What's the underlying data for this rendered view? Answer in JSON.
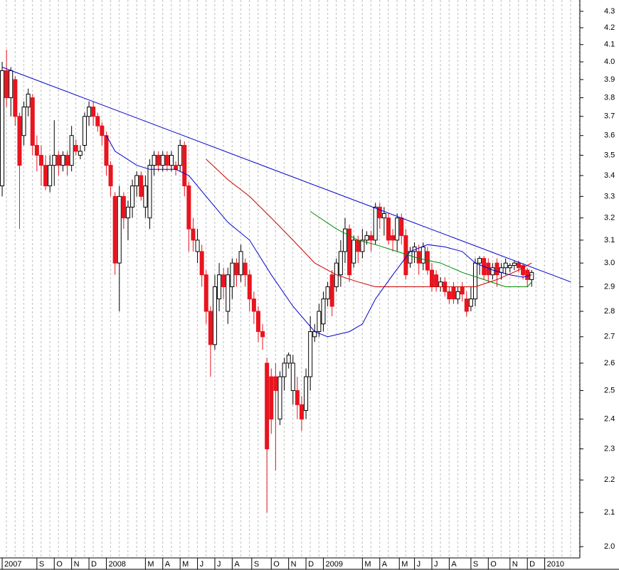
{
  "chart_data": {
    "type": "candlestick",
    "log_scale": true,
    "up_color": "#ffffff",
    "down_color": "#e8141e",
    "open": [
      3.35,
      3.95,
      3.8,
      3.9,
      3.7,
      3.6,
      3.75,
      3.8,
      3.55,
      3.5,
      3.45,
      3.35,
      3.45,
      3.5,
      3.45,
      3.5,
      3.45,
      3.55,
      3.5,
      3.55,
      3.7,
      3.75,
      3.7,
      3.65,
      3.6,
      3.45,
      3.3,
      3.0,
      3.3,
      3.2,
      3.25,
      3.35,
      3.4,
      3.25,
      3.2,
      3.45,
      3.5,
      3.45,
      3.5,
      3.45,
      3.45,
      3.45,
      3.55,
      3.35,
      3.15,
      3.05,
      3.05,
      2.95,
      2.8,
      2.67,
      2.85,
      2.95,
      2.8,
      2.9,
      3.0,
      2.95,
      3.0,
      2.95,
      2.85,
      2.8,
      2.72,
      2.6,
      2.55,
      2.55,
      2.4,
      2.55,
      2.6,
      2.5,
      2.5,
      2.45,
      2.43,
      2.55,
      2.7,
      2.72,
      2.75,
      2.85,
      2.95,
      2.9,
      2.95,
      3.05,
      3.15,
      3.0,
      3.1,
      3.05,
      3.1,
      3.12,
      3.1,
      3.25,
      3.2,
      3.2,
      3.12,
      3.1,
      3.2,
      3.12,
      3.0,
      3.05,
      3.05,
      3.0,
      3.05,
      2.97,
      2.95,
      2.9,
      2.92,
      2.88,
      2.9,
      2.85,
      2.9,
      2.85,
      2.82,
      2.85,
      3.0,
      3.02,
      3.0,
      2.95,
      3.0,
      2.96,
      2.98,
      2.98,
      2.99,
      3.0,
      2.99,
      2.97,
      2.93
    ],
    "high": [
      4.0,
      4.07,
      3.97,
      3.92,
      3.72,
      3.78,
      3.85,
      3.82,
      3.6,
      3.55,
      3.5,
      3.5,
      3.68,
      3.52,
      3.52,
      3.52,
      3.65,
      3.58,
      3.55,
      3.72,
      3.78,
      3.78,
      3.72,
      3.67,
      3.62,
      3.47,
      3.32,
      3.35,
      3.32,
      3.28,
      3.38,
      3.42,
      3.42,
      3.4,
      3.48,
      3.52,
      3.52,
      3.52,
      3.52,
      3.52,
      3.47,
      3.58,
      3.57,
      3.37,
      3.2,
      3.15,
      3.08,
      2.97,
      2.82,
      2.95,
      3.0,
      2.98,
      2.98,
      3.02,
      3.02,
      3.08,
      3.02,
      2.97,
      2.88,
      2.82,
      2.75,
      2.62,
      2.58,
      2.6,
      2.57,
      2.62,
      2.64,
      2.63,
      2.55,
      2.48,
      2.58,
      2.78,
      2.75,
      2.83,
      2.88,
      2.92,
      2.97,
      3.02,
      3.1,
      3.2,
      3.17,
      3.12,
      3.12,
      3.15,
      3.14,
      3.14,
      3.27,
      3.27,
      3.25,
      3.22,
      3.15,
      3.22,
      3.22,
      3.15,
      3.07,
      3.09,
      3.08,
      3.09,
      3.07,
      3.0,
      2.97,
      2.94,
      2.94,
      2.9,
      2.92,
      2.9,
      2.92,
      2.88,
      2.9,
      3.02,
      3.03,
      3.03,
      3.02,
      3.0,
      3.02,
      3.0,
      3.02,
      3.0,
      3.01,
      3.01,
      3.0,
      2.98,
      2.97
    ],
    "low": [
      3.3,
      3.75,
      3.7,
      3.65,
      3.15,
      3.55,
      3.7,
      3.5,
      3.42,
      3.35,
      3.33,
      3.32,
      3.35,
      3.4,
      3.42,
      3.4,
      3.42,
      3.5,
      3.48,
      3.52,
      3.65,
      3.65,
      3.62,
      3.55,
      3.4,
      3.3,
      2.95,
      2.8,
      3.15,
      3.1,
      3.2,
      3.3,
      3.28,
      3.2,
      3.15,
      3.4,
      3.42,
      3.42,
      3.42,
      3.42,
      3.4,
      3.42,
      3.3,
      3.05,
      3.05,
      3.0,
      2.9,
      2.75,
      2.55,
      2.65,
      2.8,
      2.85,
      2.75,
      2.85,
      2.9,
      2.92,
      2.9,
      2.8,
      2.75,
      2.68,
      2.65,
      2.1,
      2.35,
      2.23,
      2.38,
      2.5,
      2.58,
      2.45,
      2.4,
      2.36,
      2.4,
      2.5,
      2.68,
      2.7,
      2.72,
      2.82,
      2.78,
      2.88,
      2.9,
      3.0,
      2.92,
      2.98,
      3.0,
      3.02,
      3.08,
      3.05,
      3.08,
      3.15,
      3.12,
      3.08,
      3.05,
      3.05,
      3.08,
      2.93,
      2.98,
      3.0,
      2.95,
      2.97,
      2.95,
      2.88,
      2.88,
      2.88,
      2.86,
      2.83,
      2.83,
      2.83,
      2.84,
      2.78,
      2.8,
      2.82,
      2.95,
      2.93,
      2.92,
      2.93,
      2.9,
      2.93,
      2.95,
      2.96,
      2.97,
      2.96,
      2.93,
      2.9,
      2.9
    ],
    "close": [
      3.95,
      3.8,
      3.95,
      3.7,
      3.45,
      3.75,
      3.82,
      3.55,
      3.5,
      3.45,
      3.35,
      3.45,
      3.5,
      3.45,
      3.5,
      3.45,
      3.6,
      3.52,
      3.52,
      3.7,
      3.75,
      3.7,
      3.65,
      3.6,
      3.45,
      3.35,
      3.0,
      3.3,
      3.2,
      3.25,
      3.35,
      3.4,
      3.3,
      3.35,
      3.45,
      3.5,
      3.45,
      3.5,
      3.45,
      3.5,
      3.43,
      3.55,
      3.35,
      3.15,
      3.1,
      3.1,
      2.95,
      2.8,
      2.67,
      2.9,
      2.95,
      2.9,
      2.95,
      3.0,
      2.95,
      3.05,
      2.95,
      2.85,
      2.8,
      2.72,
      2.7,
      2.3,
      2.4,
      2.5,
      2.55,
      2.6,
      2.63,
      2.6,
      2.45,
      2.4,
      2.55,
      2.72,
      2.72,
      2.8,
      2.85,
      2.9,
      2.82,
      3.0,
      3.05,
      3.15,
      2.95,
      3.1,
      3.05,
      3.1,
      3.12,
      3.1,
      3.25,
      3.2,
      3.22,
      3.1,
      3.1,
      3.2,
      3.12,
      2.95,
      3.05,
      3.07,
      3.0,
      3.07,
      2.97,
      2.9,
      2.9,
      2.92,
      2.88,
      2.85,
      2.85,
      2.88,
      2.87,
      2.8,
      2.85,
      3.0,
      3.02,
      2.95,
      2.95,
      2.98,
      2.95,
      2.98,
      3.0,
      2.99,
      3.0,
      2.98,
      2.95,
      2.93,
      2.96
    ],
    "lines": [
      {
        "color": "#0000cc",
        "x": [
          0,
          131
        ],
        "values": [
          3.97,
          2.92
        ]
      },
      {
        "color": "#0000cc",
        "x": [
          24,
          26,
          31,
          34,
          40,
          43,
          47,
          52,
          57,
          62,
          67,
          72,
          75,
          80,
          83,
          86,
          90,
          94,
          98,
          102,
          106,
          109,
          113,
          117,
          120,
          122
        ],
        "values": [
          3.6,
          3.52,
          3.45,
          3.43,
          3.43,
          3.4,
          3.3,
          3.18,
          3.1,
          2.95,
          2.82,
          2.72,
          2.7,
          2.72,
          2.75,
          2.85,
          2.95,
          3.05,
          3.08,
          3.07,
          3.05,
          3.0,
          2.97,
          2.95,
          2.94,
          2.95
        ]
      },
      {
        "color": "#cc0000",
        "x": [
          47,
          52,
          57,
          62,
          67,
          72,
          77,
          82,
          86,
          91,
          98,
          104,
          109,
          114,
          119,
          122
        ],
        "values": [
          3.48,
          3.38,
          3.3,
          3.2,
          3.1,
          3.0,
          2.95,
          2.92,
          2.9,
          2.9,
          2.9,
          2.9,
          2.9,
          2.93,
          2.97,
          3.0
        ]
      },
      {
        "color": "#008800",
        "x": [
          71,
          77,
          82,
          86,
          91,
          96,
          101,
          106,
          111,
          116,
          121,
          122
        ],
        "values": [
          3.23,
          3.15,
          3.1,
          3.08,
          3.05,
          3.02,
          3.0,
          2.96,
          2.93,
          2.9,
          2.9,
          2.92
        ]
      }
    ],
    "xlim": [
      -0.5,
      133.1
    ],
    "xticks": [
      {
        "value": 0,
        "label": "2007"
      },
      {
        "value": 8,
        "label": "S"
      },
      {
        "value": 12,
        "label": "O"
      },
      {
        "value": 16,
        "label": "N"
      },
      {
        "value": 20,
        "label": "D"
      },
      {
        "value": 24,
        "label": "2008"
      },
      {
        "value": 33,
        "label": "M"
      },
      {
        "value": 37,
        "label": "A"
      },
      {
        "value": 41,
        "label": "M"
      },
      {
        "value": 45,
        "label": "J"
      },
      {
        "value": 49,
        "label": "J"
      },
      {
        "value": 53,
        "label": "A"
      },
      {
        "value": 57.5,
        "label": "S"
      },
      {
        "value": 62,
        "label": "O"
      },
      {
        "value": 66,
        "label": "N"
      },
      {
        "value": 70,
        "label": "D"
      },
      {
        "value": 74,
        "label": "2009"
      },
      {
        "value": 83,
        "label": "M"
      },
      {
        "value": 87,
        "label": "A"
      },
      {
        "value": 91.5,
        "label": "M"
      },
      {
        "value": 95,
        "label": "J"
      },
      {
        "value": 99,
        "label": "J"
      },
      {
        "value": 103,
        "label": "A"
      },
      {
        "value": 108,
        "label": "S"
      },
      {
        "value": 112,
        "label": "O"
      },
      {
        "value": 117,
        "label": "N"
      },
      {
        "value": 121,
        "label": "D"
      },
      {
        "value": 125,
        "label": "2010"
      }
    ],
    "ylim": [
      1.968,
      4.37
    ],
    "yticks": [
      {
        "value": 2.0,
        "label": "2.0"
      },
      2.1,
      2.2,
      2.3,
      2.4,
      2.5,
      2.6,
      2.7,
      2.8,
      2.9,
      {
        "value": 3.0,
        "label": "3.0"
      },
      3.1,
      3.2,
      3.3,
      3.4,
      3.5,
      3.6,
      3.7,
      3.8,
      3.9,
      {
        "value": 4.0,
        "label": "4.0"
      },
      4.1,
      4.2,
      4.3
    ]
  }
}
